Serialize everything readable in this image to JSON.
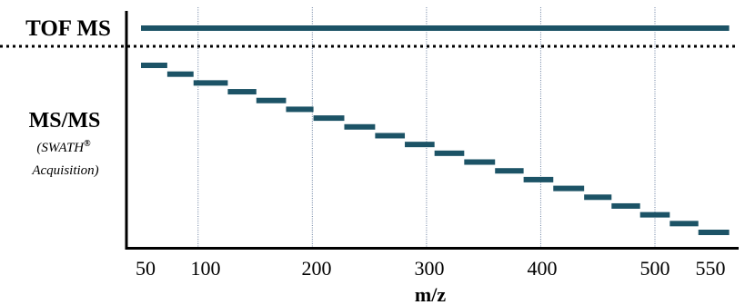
{
  "chart_data": {
    "type": "bar",
    "title": "",
    "xlabel": "m/z",
    "ylabel": "",
    "xlim": [
      45,
      565
    ],
    "x_ticks": [
      50,
      100,
      200,
      300,
      400,
      500,
      550
    ],
    "x_tick_labels": [
      "50",
      "100",
      "200",
      "300",
      "400",
      "500",
      "550"
    ],
    "gridlines_x": [
      100,
      200,
      300,
      400,
      500
    ],
    "row_labels": {
      "tof": "TOF MS",
      "msms": "MS/MS",
      "swath_line1": "(SWATH",
      "swath_registered": "®",
      "swath_line2": "Acquisition)"
    },
    "series": [
      {
        "name": "TOF MS",
        "ranges": [
          [
            50,
            565
          ]
        ]
      },
      {
        "name": "MS/MS",
        "ranges": [
          [
            50,
            73
          ],
          [
            73,
            96
          ],
          [
            96,
            126
          ],
          [
            126,
            151
          ],
          [
            151,
            177
          ],
          [
            177,
            201
          ],
          [
            201,
            228
          ],
          [
            228,
            255
          ],
          [
            255,
            281
          ],
          [
            281,
            307
          ],
          [
            307,
            333
          ],
          [
            333,
            360
          ],
          [
            360,
            385
          ],
          [
            385,
            411
          ],
          [
            411,
            438
          ],
          [
            438,
            462
          ],
          [
            462,
            487
          ],
          [
            487,
            513
          ],
          [
            513,
            538
          ],
          [
            538,
            565
          ]
        ]
      }
    ],
    "colors": {
      "bar": "#1c5366",
      "axis": "#000000",
      "grid": "#6a7fa0",
      "separator": "#000000"
    }
  }
}
